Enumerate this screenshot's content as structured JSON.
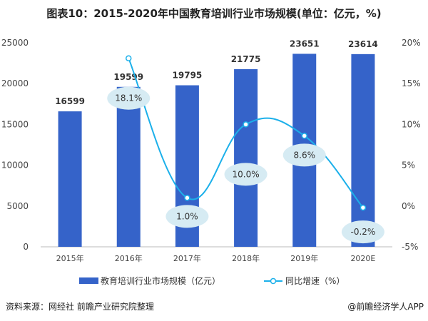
{
  "title": "图表10：2015-2020年中国教育培训行业市场规模(单位：亿元，%)",
  "source": "资料来源：网经社 前瞻产业研究院整理",
  "brand": "@前瞻经济学人APP",
  "chart_data": {
    "type": "bar",
    "title": "图表10：2015-2020年中国教育培训行业市场规模(单位：亿元，%)",
    "categories": [
      "2015年",
      "2016年",
      "2017年",
      "2018年",
      "2019年",
      "2020E"
    ],
    "series": [
      {
        "name": "教育培训行业市场规模（亿元）",
        "type": "bar",
        "axis": "left",
        "color": "#3563c9",
        "values": [
          16599,
          19599,
          19795,
          21775,
          23651,
          23614
        ],
        "labels": [
          "16599",
          "19599",
          "19795",
          "21775",
          "23651",
          "23614"
        ]
      },
      {
        "name": "同比增速（%）",
        "type": "line",
        "smooth": true,
        "axis": "right",
        "color": "#1cb0ea",
        "values": [
          null,
          18.1,
          1.0,
          10.0,
          8.6,
          -0.2
        ],
        "labels": [
          "",
          "18.1%",
          "1.0%",
          "10.0%",
          "8.6%",
          "-0.2%"
        ]
      }
    ],
    "y_left": {
      "range": [
        0,
        25000
      ],
      "ticks": [
        "0",
        "5000",
        "10000",
        "15000",
        "20000",
        "25000"
      ]
    },
    "y_right": {
      "range": [
        -5,
        20
      ],
      "ticks": [
        "-5%",
        "0%",
        "5%",
        "10%",
        "15%",
        "20%"
      ]
    },
    "grid": false,
    "legend": "bottom"
  }
}
